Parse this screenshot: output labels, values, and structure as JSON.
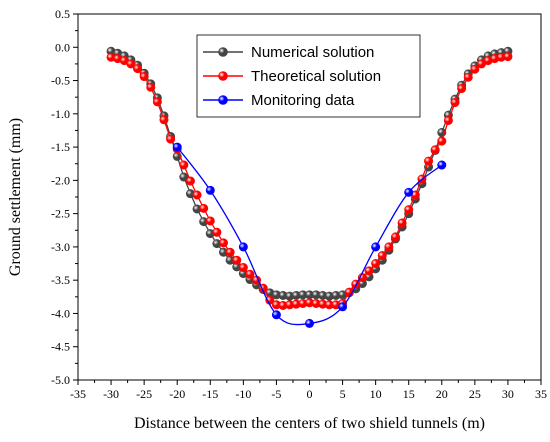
{
  "chart_data": {
    "type": "line",
    "title": "",
    "xlabel": "Distance between the centers of two shield tunnels (m)",
    "ylabel": "Ground settlement (mm)",
    "xlim": [
      -35,
      35
    ],
    "ylim": [
      -5.0,
      0.5
    ],
    "xticks": [
      -35,
      -30,
      -25,
      -20,
      -15,
      -10,
      -5,
      0,
      5,
      10,
      15,
      20,
      25,
      30,
      35
    ],
    "xtick_labels": [
      "-35",
      "-30",
      "-25",
      "-20",
      "-15",
      "-10",
      "-5",
      "0",
      "5",
      "10",
      "15",
      "20",
      "25",
      "30",
      "35"
    ],
    "yticks": [
      -5.0,
      -4.5,
      -4.0,
      -3.5,
      -3.0,
      -2.5,
      -2.0,
      -1.5,
      -1.0,
      -0.5,
      0.0,
      0.5
    ],
    "ytick_labels": [
      "-5.0",
      "-4.5",
      "-4.0",
      "-3.5",
      "-3.0",
      "-2.5",
      "-2.0",
      "-1.5",
      "-1.0",
      "-0.5",
      "0.0",
      "0.5"
    ],
    "grid": false,
    "legend_position": "top-center",
    "series": [
      {
        "name": "Numerical solution",
        "color": "#444444",
        "marker": "circle",
        "x": [
          -30,
          -29,
          -28,
          -27,
          -26,
          -25,
          -24,
          -23,
          -22,
          -21,
          -20,
          -19,
          -18,
          -17,
          -16,
          -15,
          -14,
          -13,
          -12,
          -11,
          -10,
          -9,
          -8,
          -7,
          -6,
          -5,
          -4,
          -3,
          -2,
          -1,
          0,
          1,
          2,
          3,
          4,
          5,
          6,
          7,
          8,
          9,
          10,
          11,
          12,
          13,
          14,
          15,
          16,
          17,
          18,
          19,
          20,
          21,
          22,
          23,
          24,
          25,
          26,
          27,
          28,
          29,
          30
        ],
        "y": [
          -0.06,
          -0.09,
          -0.13,
          -0.19,
          -0.27,
          -0.39,
          -0.55,
          -0.76,
          -1.03,
          -1.34,
          -1.64,
          -1.95,
          -2.2,
          -2.43,
          -2.62,
          -2.8,
          -2.95,
          -3.08,
          -3.2,
          -3.3,
          -3.4,
          -3.49,
          -3.57,
          -3.64,
          -3.69,
          -3.72,
          -3.73,
          -3.74,
          -3.73,
          -3.72,
          -3.72,
          -3.72,
          -3.73,
          -3.74,
          -3.73,
          -3.72,
          -3.69,
          -3.63,
          -3.55,
          -3.45,
          -3.33,
          -3.2,
          -3.05,
          -2.88,
          -2.7,
          -2.5,
          -2.28,
          -2.05,
          -1.8,
          -1.55,
          -1.28,
          -1.02,
          -0.78,
          -0.57,
          -0.4,
          -0.28,
          -0.19,
          -0.13,
          -0.1,
          -0.08,
          -0.06
        ]
      },
      {
        "name": "Theoretical solution",
        "color": "#ff0000",
        "marker": "circle",
        "x": [
          -30,
          -29,
          -28,
          -27,
          -26,
          -25,
          -24,
          -23,
          -22,
          -21,
          -20,
          -19,
          -18,
          -17,
          -16,
          -15,
          -14,
          -13,
          -12,
          -11,
          -10,
          -9,
          -8,
          -7,
          -6,
          -5,
          -4,
          -3,
          -2,
          -1,
          0,
          1,
          2,
          3,
          4,
          5,
          6,
          7,
          8,
          9,
          10,
          11,
          12,
          13,
          14,
          15,
          16,
          17,
          18,
          19,
          20,
          21,
          22,
          23,
          24,
          25,
          26,
          27,
          28,
          29,
          30
        ],
        "y": [
          -0.15,
          -0.17,
          -0.2,
          -0.25,
          -0.32,
          -0.44,
          -0.6,
          -0.82,
          -1.09,
          -1.38,
          -1.53,
          -1.77,
          -2.01,
          -2.22,
          -2.42,
          -2.61,
          -2.78,
          -2.94,
          -3.08,
          -3.2,
          -3.31,
          -3.41,
          -3.5,
          -3.62,
          -3.8,
          -3.87,
          -3.88,
          -3.87,
          -3.86,
          -3.85,
          -3.84,
          -3.85,
          -3.86,
          -3.87,
          -3.87,
          -3.85,
          -3.68,
          -3.56,
          -3.46,
          -3.36,
          -3.25,
          -3.13,
          -3.0,
          -2.85,
          -2.64,
          -2.44,
          -2.22,
          -1.98,
          -1.71,
          -1.54,
          -1.41,
          -1.1,
          -0.83,
          -0.62,
          -0.45,
          -0.33,
          -0.25,
          -0.2,
          -0.17,
          -0.15,
          -0.14
        ]
      },
      {
        "name": "Monitoring data",
        "color": "#0000ff",
        "marker": "circle",
        "smooth": true,
        "x": [
          -20,
          -15,
          -10,
          -5,
          0,
          5,
          10,
          15,
          20
        ],
        "y": [
          -1.5,
          -2.15,
          -3.0,
          -4.02,
          -4.15,
          -3.9,
          -3.0,
          -2.18,
          -1.77
        ]
      }
    ]
  }
}
